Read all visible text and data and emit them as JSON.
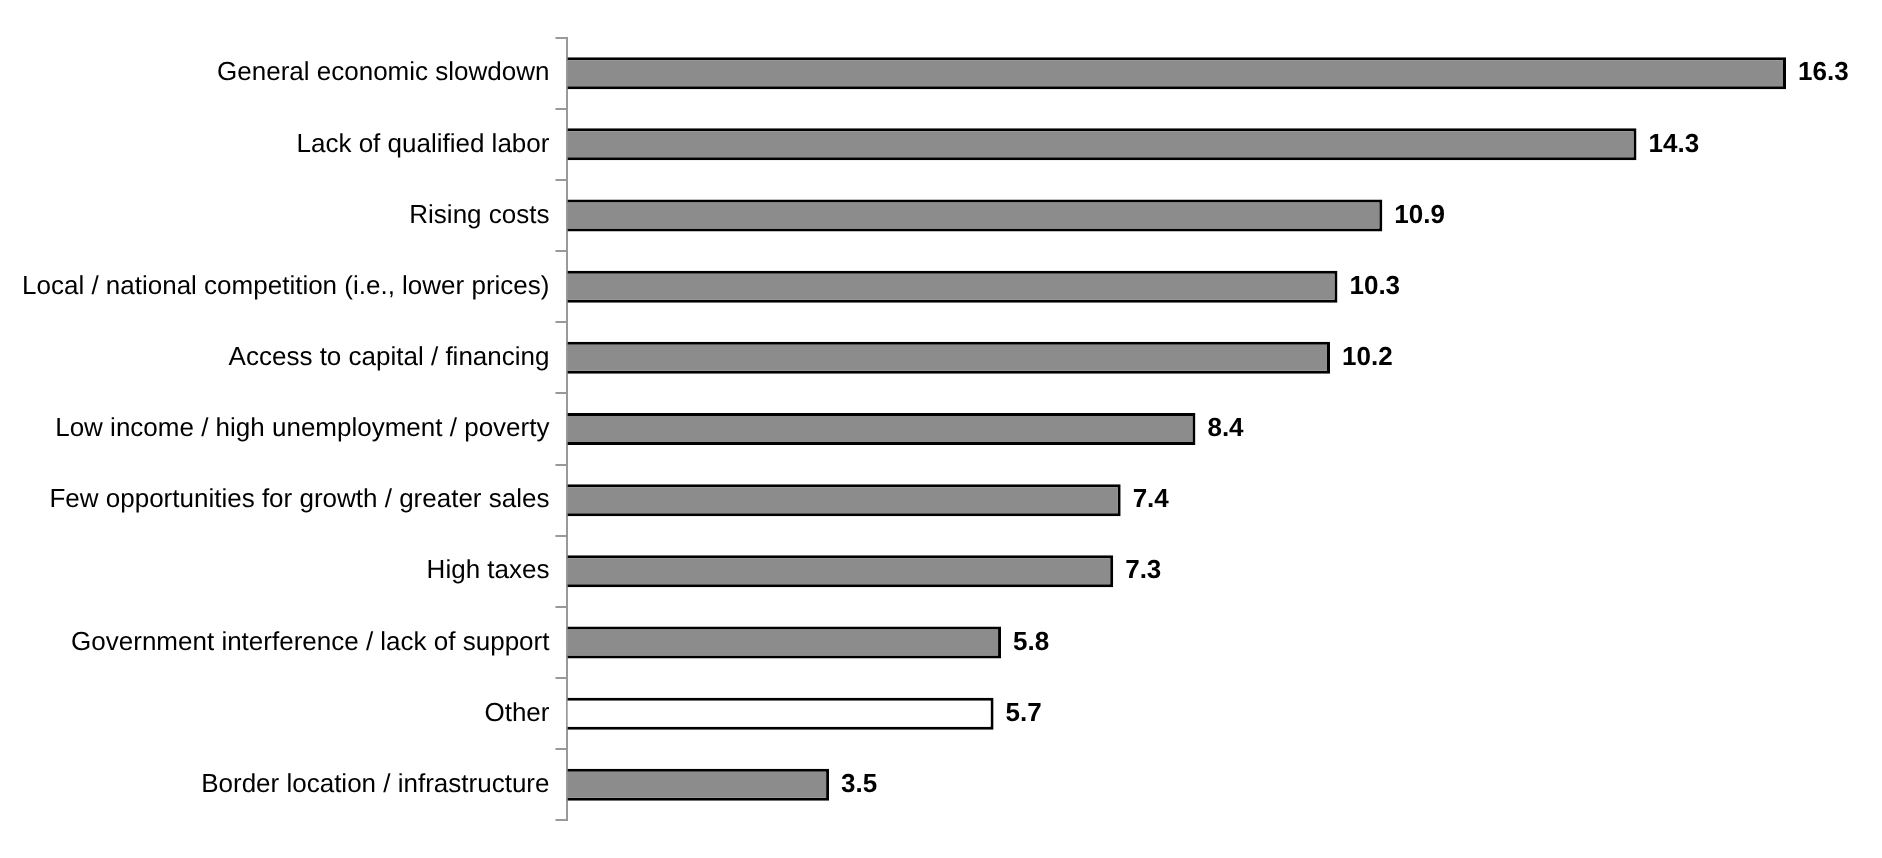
{
  "chart_data": {
    "type": "bar",
    "orientation": "horizontal",
    "categories": [
      "General economic slowdown",
      "Lack of qualified labor",
      "Rising costs",
      "Local / national competition (i.e., lower prices)",
      "Access to capital / financing",
      "Low income / high unemployment / poverty",
      "Few opportunities for growth / greater sales",
      "High taxes",
      "Government interference / lack of support",
      "Other",
      "Border location / infrastructure"
    ],
    "values": [
      16.3,
      14.3,
      10.9,
      10.3,
      10.2,
      8.4,
      7.4,
      7.3,
      5.8,
      5.7,
      3.5
    ],
    "colors": [
      "#8c8c8c",
      "#8c8c8c",
      "#8c8c8c",
      "#8c8c8c",
      "#8c8c8c",
      "#8c8c8c",
      "#8c8c8c",
      "#8c8c8c",
      "#8c8c8c",
      "#ffffff",
      "#8c8c8c"
    ],
    "xlim": [
      0,
      16.3
    ],
    "data_labels": true
  }
}
